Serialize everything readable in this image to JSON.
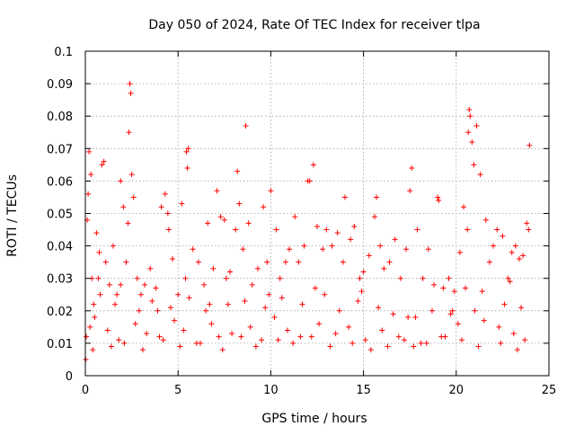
{
  "chart_data": {
    "type": "scatter",
    "title": "Day 050 of 2024, Rate Of TEC Index for receiver tlpa",
    "xlabel": "GPS time / hours",
    "ylabel": "ROTI / TECUs",
    "xlim": [
      0,
      25
    ],
    "ylim": [
      0,
      0.1
    ],
    "xticks": [
      0,
      5,
      10,
      15,
      20,
      25
    ],
    "xtick_labels": [
      "0",
      "5",
      "10",
      "15",
      "20",
      "25"
    ],
    "yticks": [
      0,
      0.01,
      0.02,
      0.03,
      0.04,
      0.05,
      0.06,
      0.07,
      0.08,
      0.09,
      0.1
    ],
    "ytick_labels": [
      "0",
      "0.01",
      "0.02",
      "0.03",
      "0.04",
      "0.05",
      "0.06",
      "0.07",
      "0.08",
      "0.09",
      "0.1"
    ],
    "grid": true,
    "marker": "+",
    "color": "#ff0000",
    "series": [
      {
        "name": "ROTI",
        "x": [
          0.02,
          0.1,
          0.15,
          0.2,
          0.3,
          0.35,
          0.45,
          0.6,
          0.75,
          0.9,
          1.0,
          1.1,
          1.3,
          1.5,
          1.7,
          1.9,
          2.05,
          2.2,
          2.3,
          2.35,
          2.4,
          2.45,
          2.5,
          2.6,
          2.8,
          3.0,
          3.2,
          3.5,
          3.8,
          4.1,
          4.3,
          4.45,
          4.5,
          4.7,
          5.0,
          5.2,
          5.4,
          5.45,
          5.5,
          5.55,
          5.8,
          6.1,
          6.4,
          6.6,
          6.9,
          7.1,
          7.3,
          7.5,
          7.6,
          7.8,
          8.1,
          8.2,
          8.3,
          8.5,
          8.65,
          8.8,
          9.0,
          9.3,
          9.6,
          9.8,
          10.0,
          10.3,
          10.5,
          10.8,
          11.0,
          11.3,
          11.5,
          11.8,
          12.0,
          12.1,
          12.3,
          12.5,
          12.8,
          13.0,
          13.3,
          13.6,
          13.9,
          14.0,
          14.3,
          14.5,
          14.8,
          15.0,
          15.3,
          15.6,
          15.7,
          15.9,
          16.1,
          16.4,
          16.7,
          17.0,
          17.3,
          17.5,
          17.6,
          17.9,
          18.2,
          18.5,
          18.8,
          19.0,
          19.05,
          19.3,
          19.6,
          19.9,
          20.2,
          20.4,
          20.6,
          20.65,
          20.7,
          20.75,
          20.85,
          20.95,
          21.1,
          21.3,
          21.6,
          21.8,
          22.0,
          22.2,
          22.5,
          22.8,
          23.0,
          23.2,
          23.4,
          23.6,
          23.8,
          23.9,
          23.95,
          0.05,
          0.25,
          0.5,
          1.2,
          1.8,
          2.7,
          3.3,
          4.0,
          4.8,
          5.3,
          6.0,
          6.8,
          7.2,
          7.9,
          8.9,
          9.5,
          10.2,
          10.9,
          11.6,
          12.6,
          13.5,
          14.2,
          15.1,
          16.0,
          16.9,
          17.7,
          18.4,
          19.4,
          20.1,
          21.0,
          21.5,
          22.3,
          23.1,
          23.7,
          0.4,
          1.4,
          2.1,
          3.1,
          4.2,
          5.1,
          6.2,
          7.4,
          8.4,
          9.2,
          10.4,
          11.2,
          12.2,
          13.2,
          14.4,
          15.4,
          16.3,
          17.2,
          18.1,
          19.2,
          20.3,
          21.2,
          22.4,
          23.3,
          0.8,
          1.6,
          2.9,
          3.6,
          4.6,
          5.6,
          6.5,
          7.7,
          8.6,
          9.7,
          10.6,
          11.7,
          12.9,
          13.7,
          14.7,
          15.8,
          16.6,
          17.8,
          18.7,
          19.7,
          20.5,
          21.4,
          22.6,
          23.5,
          0.7,
          1.9,
          3.9,
          6.7,
          9.9,
          12.4,
          14.9,
          17.4,
          19.8,
          22.9
        ],
        "y": [
          0.005,
          0.048,
          0.056,
          0.069,
          0.062,
          0.03,
          0.022,
          0.044,
          0.038,
          0.065,
          0.066,
          0.035,
          0.028,
          0.04,
          0.025,
          0.06,
          0.052,
          0.035,
          0.047,
          0.075,
          0.09,
          0.087,
          0.062,
          0.055,
          0.03,
          0.025,
          0.028,
          0.033,
          0.027,
          0.052,
          0.056,
          0.05,
          0.045,
          0.036,
          0.025,
          0.053,
          0.03,
          0.069,
          0.064,
          0.07,
          0.039,
          0.035,
          0.028,
          0.047,
          0.033,
          0.057,
          0.049,
          0.048,
          0.03,
          0.032,
          0.045,
          0.063,
          0.053,
          0.039,
          0.077,
          0.047,
          0.028,
          0.033,
          0.052,
          0.035,
          0.057,
          0.045,
          0.03,
          0.035,
          0.039,
          0.049,
          0.035,
          0.04,
          0.06,
          0.06,
          0.065,
          0.046,
          0.039,
          0.045,
          0.04,
          0.044,
          0.035,
          0.055,
          0.042,
          0.046,
          0.03,
          0.032,
          0.037,
          0.049,
          0.055,
          0.04,
          0.033,
          0.035,
          0.042,
          0.03,
          0.039,
          0.057,
          0.064,
          0.045,
          0.03,
          0.039,
          0.028,
          0.055,
          0.054,
          0.027,
          0.03,
          0.026,
          0.038,
          0.052,
          0.045,
          0.075,
          0.082,
          0.08,
          0.072,
          0.065,
          0.077,
          0.062,
          0.048,
          0.035,
          0.04,
          0.045,
          0.043,
          0.03,
          0.038,
          0.04,
          0.036,
          0.037,
          0.047,
          0.045,
          0.071,
          0.012,
          0.015,
          0.018,
          0.014,
          0.011,
          0.016,
          0.013,
          0.012,
          0.017,
          0.014,
          0.01,
          0.016,
          0.012,
          0.013,
          0.015,
          0.011,
          0.018,
          0.014,
          0.012,
          0.016,
          0.013,
          0.015,
          0.011,
          0.014,
          0.012,
          0.009,
          0.01,
          0.012,
          0.016,
          0.02,
          0.017,
          0.015,
          0.013,
          0.011,
          0.008,
          0.009,
          0.01,
          0.008,
          0.011,
          0.009,
          0.01,
          0.008,
          0.012,
          0.009,
          0.011,
          0.01,
          0.012,
          0.009,
          0.01,
          0.008,
          0.009,
          0.011,
          0.01,
          0.012,
          0.011,
          0.009,
          0.01,
          0.008,
          0.025,
          0.022,
          0.02,
          0.023,
          0.021,
          0.024,
          0.02,
          0.022,
          0.023,
          0.021,
          0.024,
          0.022,
          0.025,
          0.02,
          0.023,
          0.021,
          0.019,
          0.018,
          0.02,
          0.019,
          0.027,
          0.026,
          0.022,
          0.021,
          0.03,
          0.028,
          0.02,
          0.022,
          0.025,
          0.027,
          0.026,
          0.018,
          0.02,
          0.029
        ]
      }
    ]
  }
}
